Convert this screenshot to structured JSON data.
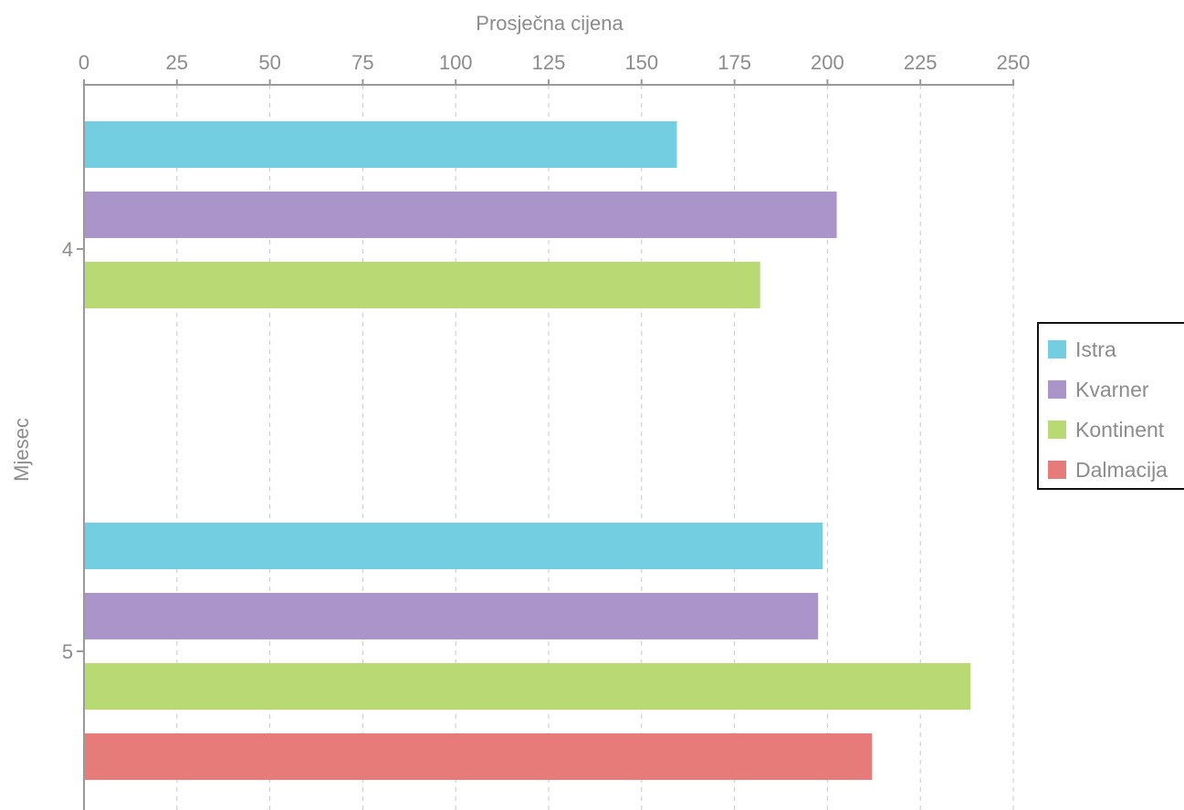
{
  "chart_data": {
    "type": "bar",
    "orientation": "horizontal",
    "xlabel": "Prosječna cijena",
    "ylabel": "Mjesec",
    "xlim": [
      0,
      250
    ],
    "xticks": [
      "0",
      "25",
      "50",
      "75",
      "100",
      "125",
      "150",
      "175",
      "200",
      "225",
      "250"
    ],
    "grid": true,
    "categories": [
      "4",
      "5"
    ],
    "series": [
      {
        "name": "Istra",
        "color": "#72cee0",
        "values": [
          159.5,
          198.7
        ]
      },
      {
        "name": "Kvarner",
        "color": "#aa94c9",
        "values": [
          202.5,
          197.5
        ]
      },
      {
        "name": "Kontinent",
        "color": "#b8d974",
        "values": [
          181.9,
          238.5
        ]
      },
      {
        "name": "Dalmacija",
        "color": "#e67b79",
        "values": [
          null,
          212.0
        ]
      }
    ],
    "legend_position": "right"
  }
}
